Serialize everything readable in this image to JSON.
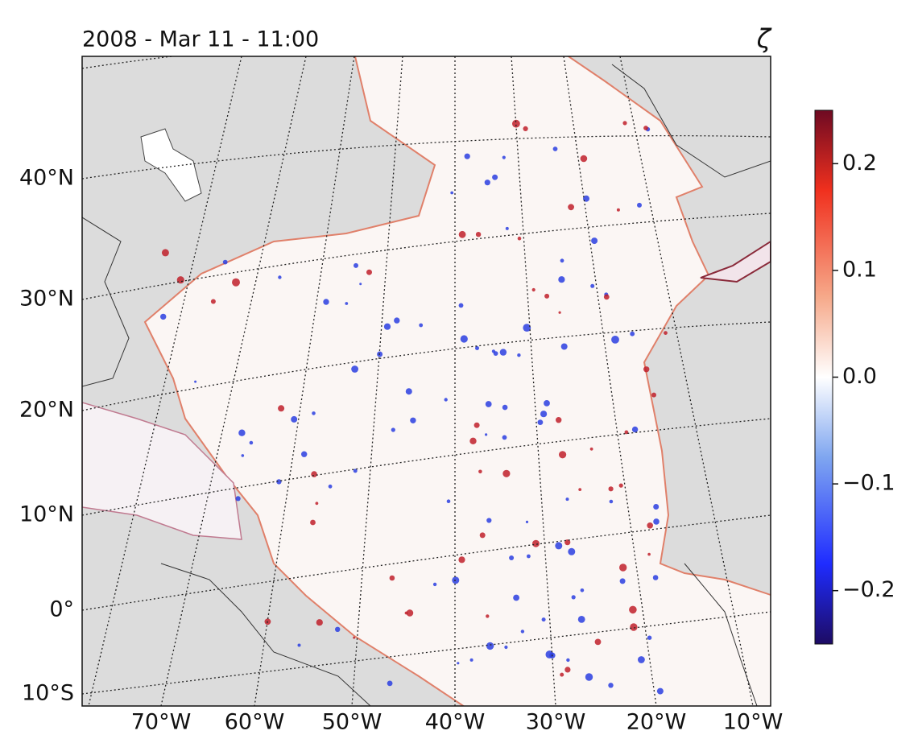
{
  "title": "2008 - Mar 11 - 11:00",
  "variable": "ζ",
  "lat_labels": [
    "40°N",
    "30°N",
    "20°N",
    "10°N",
    "0°",
    "10°S"
  ],
  "lon_labels": [
    "70°W",
    "60°W",
    "50°W",
    "40°W",
    "30°W",
    "20°W",
    "10°W"
  ],
  "colorbar": {
    "range": [
      -0.25,
      0.25
    ],
    "ticks": [
      {
        "value": 0.2,
        "label": "0.2"
      },
      {
        "value": 0.1,
        "label": "0.1"
      },
      {
        "value": 0,
        "label": "0.0"
      },
      {
        "value": -0.1,
        "label": "−0.1"
      },
      {
        "value": -0.2,
        "label": "−0.2"
      }
    ]
  }
}
